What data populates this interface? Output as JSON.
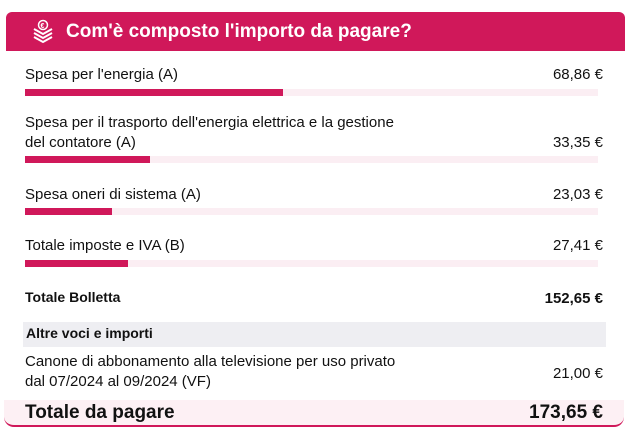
{
  "header": {
    "title": "Com'è composto l'importo da pagare?",
    "icon": "euro-stack-icon",
    "color": "#d0185a"
  },
  "items": [
    {
      "label": "Spesa per l'energia (A)",
      "amount": "68,86 €",
      "share": 0.451
    },
    {
      "label": "Spesa per il trasporto dell'energia elettrica e la gestione",
      "label2": "del contatore (A)",
      "amount": "33,35 €",
      "share": 0.218
    },
    {
      "label": "Spesa oneri di sistema (A)",
      "amount": "23,03 €",
      "share": 0.151
    },
    {
      "label": "Totale imposte e IVA (B)",
      "amount": "27,41 €",
      "share": 0.18
    }
  ],
  "totale_bolletta": {
    "label": "Totale Bolletta",
    "amount": "152,65 €"
  },
  "altre": {
    "heading": "Altre voci e importi",
    "label": "Canone di abbonamento alla televisione per uso privato",
    "label2": "dal 07/2024 al 09/2024 (VF)",
    "amount": "21,00 €"
  },
  "totale": {
    "label": "Totale da pagare",
    "amount": "173,65 €"
  }
}
